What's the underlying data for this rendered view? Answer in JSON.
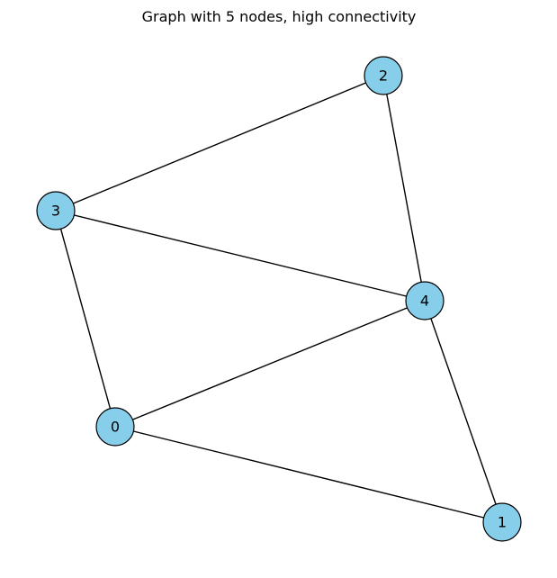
{
  "title": "Graph with 5 nodes, high connectivity",
  "node_color": "#87ceeb",
  "edge_color": "#000000",
  "nodes": [
    {
      "id": "0",
      "label": "0"
    },
    {
      "id": "1",
      "label": "1"
    },
    {
      "id": "2",
      "label": "2"
    },
    {
      "id": "3",
      "label": "3"
    },
    {
      "id": "4",
      "label": "4"
    }
  ],
  "edges": [
    {
      "source": "0",
      "target": "1"
    },
    {
      "source": "0",
      "target": "3"
    },
    {
      "source": "0",
      "target": "4"
    },
    {
      "source": "1",
      "target": "4"
    },
    {
      "source": "2",
      "target": "3"
    },
    {
      "source": "2",
      "target": "4"
    },
    {
      "source": "3",
      "target": "4"
    }
  ]
}
